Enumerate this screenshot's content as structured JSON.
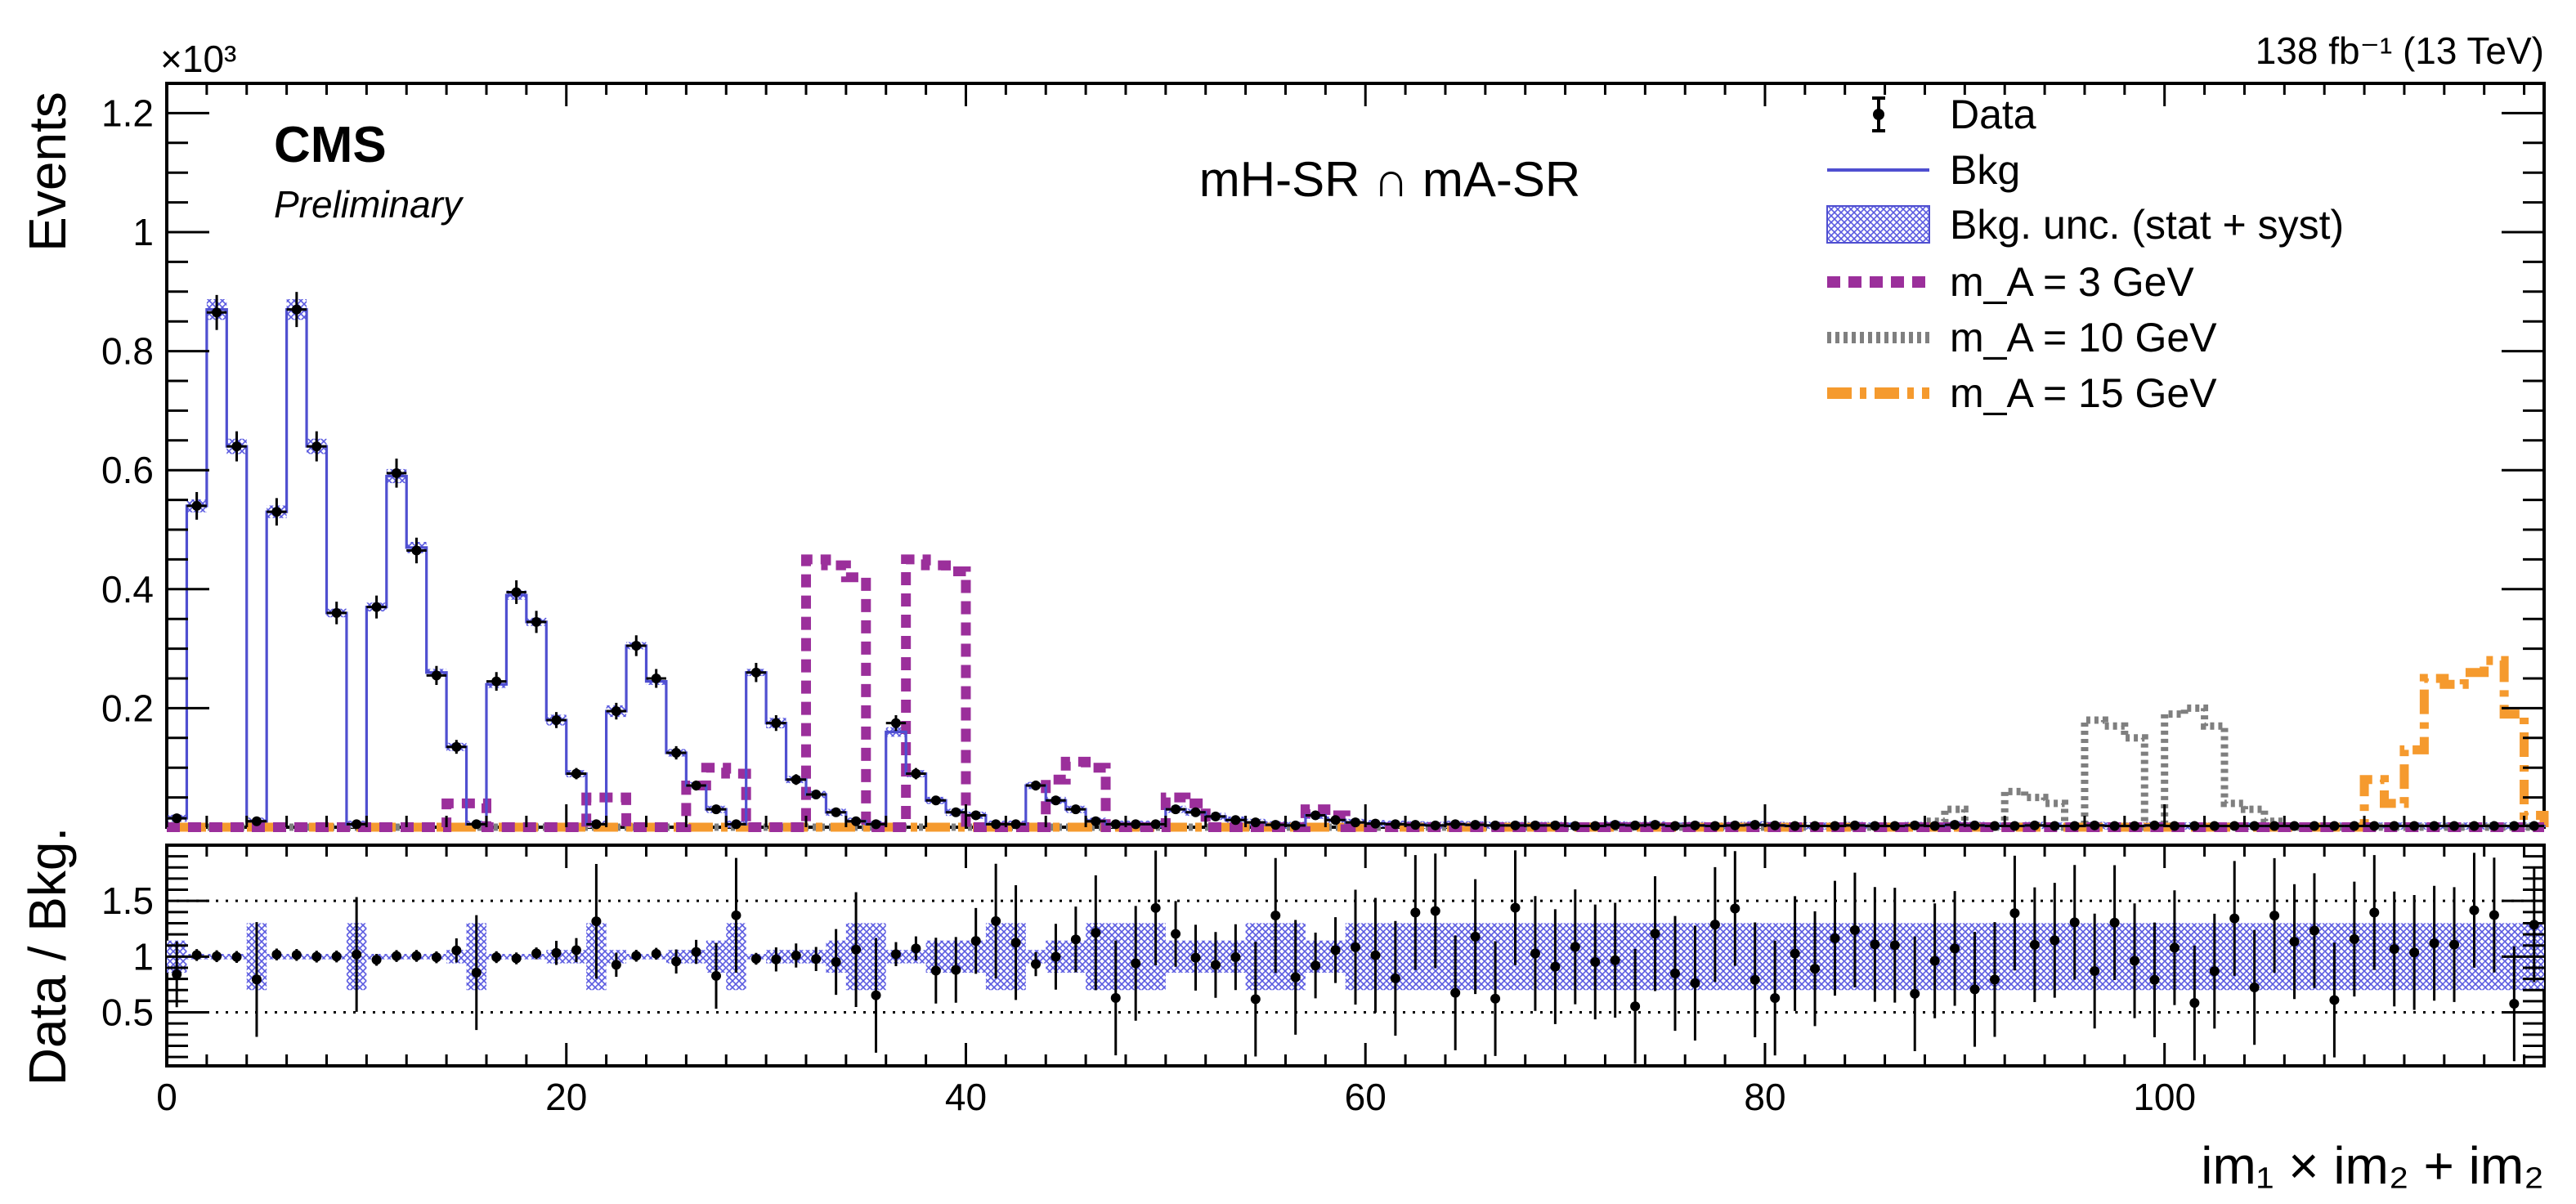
{
  "figure": {
    "experiment": "CMS",
    "status": "Preliminary",
    "lumi": "138 fb⁻¹ (13 TeV)",
    "region_label": "mH-SR ∩ mA-SR",
    "exponent_label": "×10³"
  },
  "colors": {
    "bkg": "#4f4fd0",
    "unc": "#8c8cf0",
    "ma3": "#9b2f9b",
    "ma10": "#7f7f7f",
    "ma15": "#f59a2e",
    "data": "#000000"
  },
  "legend": {
    "data": "Data",
    "bkg": "Bkg",
    "unc": "Bkg. unc.  (stat + syst)",
    "ma3": "m_A = 3 GeV",
    "ma10": "m_A = 10 GeV",
    "ma15": "m_A = 15 GeV"
  },
  "chart_data": {
    "type": "histogram",
    "title": "mH-SR ∩ mA-SR",
    "xlabel": "im₁ × im₂ + im₂",
    "ylabel": "Events",
    "ratio_ylabel": "Data / Bkg.",
    "xlim": [
      0,
      119
    ],
    "ylim": [
      0,
      1.25
    ],
    "y_scale_label": "×10³",
    "ratio_ylim": [
      0.02,
      2.0
    ],
    "x_ticks": [
      0,
      20,
      40,
      60,
      80,
      100
    ],
    "x_tick_labels": [
      "0",
      "20",
      "40",
      "60",
      "80",
      "100"
    ],
    "y_ticks": [
      0.2,
      0.4,
      0.6,
      0.8,
      1.0,
      1.2
    ],
    "y_tick_labels": [
      "0.2",
      "0.4",
      "0.6",
      "0.8",
      "1",
      "1.2"
    ],
    "ratio_ticks": [
      0.5,
      1.0,
      1.5
    ],
    "ratio_tick_labels": [
      "0.5",
      "1",
      "1.5"
    ],
    "ratio_reference_lines": [
      0.5,
      1.5
    ],
    "bins": 119,
    "bkg": [
      0.015,
      0.54,
      0.87,
      0.64,
      0.01,
      0.53,
      0.87,
      0.64,
      0.36,
      0.005,
      0.37,
      0.59,
      0.47,
      0.26,
      0.135,
      0.005,
      0.24,
      0.39,
      0.345,
      0.18,
      0.09,
      0.005,
      0.195,
      0.305,
      0.245,
      0.125,
      0.07,
      0.03,
      0.005,
      0.26,
      0.175,
      0.08,
      0.055,
      0.025,
      0.01,
      0.005,
      0.16,
      0.09,
      0.045,
      0.025,
      0.02,
      0.005,
      0.005,
      0.07,
      0.045,
      0.03,
      0.01,
      0.005,
      0.005,
      0.005,
      0.03,
      0.025,
      0.018,
      0.012,
      0.008,
      0.004,
      0.003,
      0.02,
      0.012,
      0.008,
      0.006,
      0.005,
      0.004,
      0.003,
      0.005,
      0.004,
      0.003,
      0.003,
      0.003,
      0.003,
      0.002,
      0.002,
      0.004,
      0.003,
      0.004,
      0.002,
      0.003,
      0.002,
      0.003,
      0.004,
      0.003,
      0.002,
      0.002,
      0.002,
      0.003,
      0.002,
      0.002,
      0.003,
      0.002,
      0.004,
      0.003,
      0.002,
      0.002,
      0.003,
      0.002,
      0.002,
      0.003,
      0.002,
      0.002,
      0.003,
      0.002,
      0.002,
      0.002,
      0.002,
      0.002,
      0.002,
      0.002,
      0.002,
      0.002,
      0.002,
      0.002,
      0.002,
      0.002,
      0.002,
      0.002,
      0.002,
      0.002,
      0.002,
      0.002
    ],
    "data": [
      0.015,
      0.54,
      0.865,
      0.64,
      0.01,
      0.53,
      0.87,
      0.64,
      0.36,
      0.005,
      0.37,
      0.595,
      0.465,
      0.255,
      0.135,
      0.005,
      0.245,
      0.395,
      0.345,
      0.18,
      0.09,
      0.005,
      0.195,
      0.305,
      0.25,
      0.125,
      0.07,
      0.03,
      0.005,
      0.26,
      0.175,
      0.08,
      0.055,
      0.025,
      0.01,
      0.005,
      0.175,
      0.09,
      0.045,
      0.025,
      0.02,
      0.005,
      0.005,
      0.07,
      0.045,
      0.03,
      0.01,
      0.005,
      0.005,
      0.005,
      0.03,
      0.025,
      0.018,
      0.012,
      0.008,
      0.004,
      0.003,
      0.02,
      0.012,
      0.008,
      0.006,
      0.005,
      0.004,
      0.003,
      0.005,
      0.004,
      0.003,
      0.003,
      0.003,
      0.003,
      0.002,
      0.002,
      0.004,
      0.003,
      0.004,
      0.002,
      0.003,
      0.002,
      0.003,
      0.004,
      0.003,
      0.002,
      0.002,
      0.002,
      0.003,
      0.002,
      0.002,
      0.003,
      0.002,
      0.004,
      0.003,
      0.002,
      0.002,
      0.003,
      0.002,
      0.002,
      0.003,
      0.002,
      0.002,
      0.003,
      0.002,
      0.002,
      0.002,
      0.002,
      0.002,
      0.002,
      0.002,
      0.002,
      0.002,
      0.002,
      0.002,
      0.002,
      0.002,
      0.002,
      0.002,
      0.002,
      0.002,
      0.002,
      0.002
    ],
    "ma3": [
      0,
      0,
      0,
      0,
      0,
      0,
      0,
      0,
      0,
      0,
      0,
      0,
      0,
      0,
      0.04,
      0.04,
      0,
      0,
      0,
      0,
      0,
      0.05,
      0.05,
      0,
      0,
      0,
      0.07,
      0.1,
      0.09,
      0,
      0,
      0,
      0.45,
      0.44,
      0.42,
      0,
      0,
      0.45,
      0.44,
      0.43,
      0,
      0,
      0,
      0,
      0.08,
      0.11,
      0.1,
      0,
      0,
      0,
      0.05,
      0.04,
      0,
      0,
      0,
      0,
      0,
      0.03,
      0.02,
      0,
      0,
      0,
      0,
      0,
      0,
      0,
      0,
      0,
      0,
      0,
      0,
      0,
      0,
      0,
      0,
      0,
      0,
      0,
      0,
      0,
      0,
      0,
      0,
      0,
      0,
      0,
      0,
      0,
      0,
      0,
      0,
      0,
      0,
      0,
      0,
      0,
      0,
      0,
      0,
      0,
      0,
      0,
      0,
      0,
      0,
      0,
      0,
      0,
      0,
      0,
      0,
      0,
      0,
      0,
      0,
      0,
      0,
      0,
      0
    ],
    "ma10": [
      0,
      0,
      0,
      0,
      0,
      0,
      0,
      0,
      0,
      0,
      0,
      0,
      0,
      0,
      0,
      0,
      0,
      0,
      0,
      0,
      0,
      0,
      0,
      0,
      0,
      0,
      0,
      0,
      0,
      0,
      0,
      0,
      0,
      0,
      0,
      0,
      0,
      0,
      0,
      0,
      0,
      0,
      0,
      0,
      0,
      0,
      0,
      0,
      0,
      0,
      0,
      0,
      0,
      0,
      0,
      0,
      0,
      0,
      0,
      0,
      0,
      0,
      0,
      0,
      0,
      0,
      0,
      0,
      0,
      0,
      0,
      0,
      0,
      0,
      0,
      0,
      0,
      0,
      0,
      0,
      0,
      0,
      0,
      0,
      0,
      0,
      0,
      0,
      0.01,
      0.03,
      0,
      0,
      0.06,
      0.05,
      0.04,
      0,
      0.18,
      0.17,
      0.15,
      0,
      0.19,
      0.2,
      0.17,
      0.04,
      0.03,
      0.01,
      0,
      0,
      0,
      0,
      0,
      0,
      0,
      0,
      0,
      0,
      0,
      0,
      0
    ],
    "ma15": [
      0,
      0,
      0,
      0,
      0,
      0,
      0,
      0,
      0,
      0,
      0,
      0,
      0,
      0,
      0,
      0,
      0,
      0,
      0,
      0,
      0,
      0,
      0,
      0,
      0,
      0,
      0,
      0,
      0,
      0,
      0,
      0,
      0,
      0,
      0,
      0,
      0,
      0,
      0,
      0,
      0,
      0,
      0,
      0,
      0,
      0,
      0,
      0,
      0,
      0,
      0,
      0,
      0,
      0,
      0,
      0,
      0,
      0,
      0,
      0,
      0,
      0,
      0,
      0,
      0,
      0,
      0,
      0,
      0,
      0,
      0,
      0,
      0,
      0,
      0,
      0,
      0,
      0,
      0,
      0,
      0,
      0,
      0,
      0,
      0,
      0,
      0,
      0,
      0,
      0,
      0,
      0,
      0,
      0,
      0,
      0,
      0,
      0,
      0,
      0,
      0,
      0,
      0,
      0,
      0,
      0,
      0,
      0,
      0,
      0,
      0.08,
      0.04,
      0.13,
      0.25,
      0.24,
      0.26,
      0.28,
      0.19,
      0.02
    ]
  }
}
